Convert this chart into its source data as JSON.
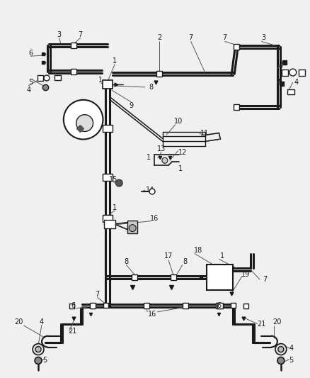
{
  "bg_color": "#f0f0f0",
  "line_color": "#1a1a1a",
  "label_color": "#1a1a1a",
  "anno_color": "#555555",
  "fig_width": 4.38,
  "fig_height": 5.33,
  "dpi": 100
}
